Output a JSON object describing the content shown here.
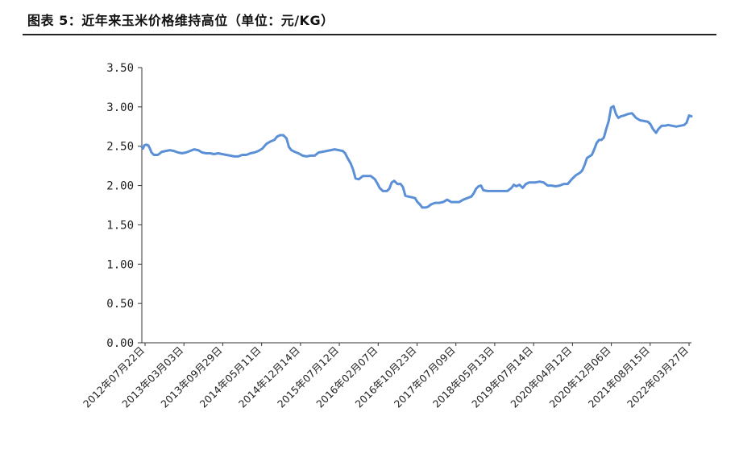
{
  "header": {
    "title": "图表 5：近年来玉米价格维持高位（单位：元/KG）"
  },
  "chart_data": {
    "type": "line",
    "title": "近年来玉米价格维持高位",
    "xlabel": "",
    "ylabel": "",
    "ylim": [
      0,
      3.5
    ],
    "y_ticks": [
      "0.00",
      "0.50",
      "1.00",
      "1.50",
      "2.00",
      "2.50",
      "3.00",
      "3.50"
    ],
    "grid": false,
    "line_color": "#5b8fd6",
    "x_ticks": [
      "2012年07月22日",
      "2013年03月03日",
      "2013年09月29日",
      "2014年05月11日",
      "2014年12月14日",
      "2015年07月12日",
      "2016年02月07日",
      "2016年10月23日",
      "2017年07月09日",
      "2018年05月13日",
      "2019年07月14日",
      "2020年04月12日",
      "2020年12月06日",
      "2021年08月15日",
      "2022年03月27日"
    ],
    "series": [
      {
        "values": [
          [
            0,
            2.49
          ],
          [
            1.5,
            2.47
          ],
          [
            3,
            2.51
          ],
          [
            5.5,
            2.52
          ],
          [
            8,
            2.51
          ],
          [
            10,
            2.47
          ],
          [
            12,
            2.42
          ],
          [
            15,
            2.39
          ],
          [
            20,
            2.39
          ],
          [
            25,
            2.43
          ],
          [
            30,
            2.44
          ],
          [
            35,
            2.45
          ],
          [
            40,
            2.44
          ],
          [
            45,
            2.42
          ],
          [
            50,
            2.41
          ],
          [
            55,
            2.42
          ],
          [
            60,
            2.44
          ],
          [
            65,
            2.46
          ],
          [
            70,
            2.45
          ],
          [
            75,
            2.42
          ],
          [
            80,
            2.41
          ],
          [
            85,
            2.41
          ],
          [
            90,
            2.4
          ],
          [
            95,
            2.41
          ],
          [
            100,
            2.4
          ],
          [
            105,
            2.39
          ],
          [
            110,
            2.38
          ],
          [
            115,
            2.37
          ],
          [
            120,
            2.37
          ],
          [
            125,
            2.39
          ],
          [
            130,
            2.39
          ],
          [
            135,
            2.41
          ],
          [
            140,
            2.42
          ],
          [
            145,
            2.44
          ],
          [
            150,
            2.47
          ],
          [
            155,
            2.53
          ],
          [
            160,
            2.56
          ],
          [
            165,
            2.58
          ],
          [
            168,
            2.62
          ],
          [
            172,
            2.64
          ],
          [
            176,
            2.64
          ],
          [
            180,
            2.6
          ],
          [
            183,
            2.49
          ],
          [
            186,
            2.45
          ],
          [
            190,
            2.43
          ],
          [
            195,
            2.41
          ],
          [
            200,
            2.38
          ],
          [
            205,
            2.37
          ],
          [
            210,
            2.38
          ],
          [
            215,
            2.38
          ],
          [
            220,
            2.42
          ],
          [
            225,
            2.43
          ],
          [
            230,
            2.44
          ],
          [
            235,
            2.45
          ],
          [
            240,
            2.46
          ],
          [
            245,
            2.45
          ],
          [
            250,
            2.44
          ],
          [
            253,
            2.41
          ],
          [
            256,
            2.35
          ],
          [
            260,
            2.28
          ],
          [
            263,
            2.2
          ],
          [
            266,
            2.09
          ],
          [
            270,
            2.08
          ],
          [
            275,
            2.12
          ],
          [
            280,
            2.12
          ],
          [
            285,
            2.12
          ],
          [
            290,
            2.08
          ],
          [
            293,
            2.03
          ],
          [
            296,
            1.97
          ],
          [
            300,
            1.93
          ],
          [
            305,
            1.93
          ],
          [
            308,
            1.96
          ],
          [
            311,
            2.04
          ],
          [
            314,
            2.06
          ],
          [
            318,
            2.02
          ],
          [
            322,
            2.02
          ],
          [
            325,
            1.98
          ],
          [
            328,
            1.87
          ],
          [
            332,
            1.86
          ],
          [
            336,
            1.85
          ],
          [
            340,
            1.84
          ],
          [
            343,
            1.79
          ],
          [
            346,
            1.76
          ],
          [
            349,
            1.72
          ],
          [
            353,
            1.72
          ],
          [
            356,
            1.73
          ],
          [
            360,
            1.76
          ],
          [
            365,
            1.78
          ],
          [
            370,
            1.78
          ],
          [
            375,
            1.79
          ],
          [
            380,
            1.82
          ],
          [
            385,
            1.79
          ],
          [
            390,
            1.79
          ],
          [
            395,
            1.79
          ],
          [
            400,
            1.82
          ],
          [
            405,
            1.84
          ],
          [
            410,
            1.86
          ],
          [
            413,
            1.9
          ],
          [
            416,
            1.96
          ],
          [
            419,
            1.99
          ],
          [
            422,
            2.0
          ],
          [
            425,
            1.94
          ],
          [
            430,
            1.93
          ],
          [
            440,
            1.93
          ],
          [
            450,
            1.93
          ],
          [
            455,
            1.93
          ],
          [
            460,
            1.97
          ],
          [
            463,
            2.01
          ],
          [
            466,
            1.99
          ],
          [
            470,
            2.01
          ],
          [
            474,
            1.97
          ],
          [
            478,
            2.02
          ],
          [
            482,
            2.04
          ],
          [
            486,
            2.04
          ],
          [
            490,
            2.04
          ],
          [
            495,
            2.05
          ],
          [
            500,
            2.04
          ],
          [
            505,
            2.0
          ],
          [
            510,
            2.0
          ],
          [
            515,
            1.99
          ],
          [
            520,
            2.0
          ],
          [
            525,
            2.02
          ],
          [
            530,
            2.02
          ],
          [
            535,
            2.08
          ],
          [
            540,
            2.13
          ],
          [
            545,
            2.16
          ],
          [
            548,
            2.19
          ],
          [
            551,
            2.26
          ],
          [
            554,
            2.35
          ],
          [
            557,
            2.37
          ],
          [
            560,
            2.39
          ],
          [
            563,
            2.46
          ],
          [
            566,
            2.54
          ],
          [
            569,
            2.58
          ],
          [
            572,
            2.58
          ],
          [
            575,
            2.61
          ],
          [
            578,
            2.72
          ],
          [
            581,
            2.82
          ],
          [
            584,
            2.99
          ],
          [
            587,
            3.01
          ],
          [
            590,
            2.91
          ],
          [
            593,
            2.86
          ],
          [
            596,
            2.88
          ],
          [
            600,
            2.89
          ],
          [
            605,
            2.91
          ],
          [
            610,
            2.92
          ],
          [
            615,
            2.86
          ],
          [
            620,
            2.83
          ],
          [
            625,
            2.82
          ],
          [
            630,
            2.81
          ],
          [
            633,
            2.78
          ],
          [
            636,
            2.72
          ],
          [
            640,
            2.67
          ],
          [
            643,
            2.72
          ],
          [
            647,
            2.76
          ],
          [
            651,
            2.76
          ],
          [
            655,
            2.77
          ],
          [
            660,
            2.76
          ],
          [
            665,
            2.75
          ],
          [
            670,
            2.76
          ],
          [
            675,
            2.77
          ],
          [
            678,
            2.8
          ],
          [
            681,
            2.89
          ],
          [
            684,
            2.88
          ]
        ]
      }
    ]
  }
}
